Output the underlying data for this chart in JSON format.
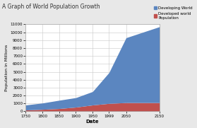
{
  "title": "A Graph of World Population Growth",
  "xlabel": "Date",
  "ylabel": "Population in Millions",
  "legend_developing": "Developing World",
  "legend_developed": "Developed world\nPopulation",
  "color_developing": "#5b86c0",
  "color_developed": "#c0504d",
  "bg_color": "#e8e8e8",
  "plot_bg": "#ffffff",
  "xlim": [
    1750,
    2150
  ],
  "ylim": [
    0,
    11000
  ],
  "yticks": [
    0,
    1000,
    2000,
    3000,
    4000,
    5000,
    6000,
    7000,
    8000,
    9000,
    10000,
    11000
  ],
  "xticks": [
    1750,
    1800,
    1850,
    1900,
    1950,
    1999,
    2050,
    2150
  ],
  "xtick_labels": [
    "1750",
    "1800",
    "1850",
    "1900",
    "1950",
    "1999",
    "2050",
    "2150"
  ],
  "years": [
    1750,
    1800,
    1850,
    1900,
    1950,
    1999,
    2050,
    2150
  ],
  "developed": [
    170,
    250,
    350,
    530,
    800,
    1000,
    1100,
    1100
  ],
  "developing": [
    630,
    800,
    1050,
    1200,
    1700,
    3900,
    8200,
    9600
  ]
}
